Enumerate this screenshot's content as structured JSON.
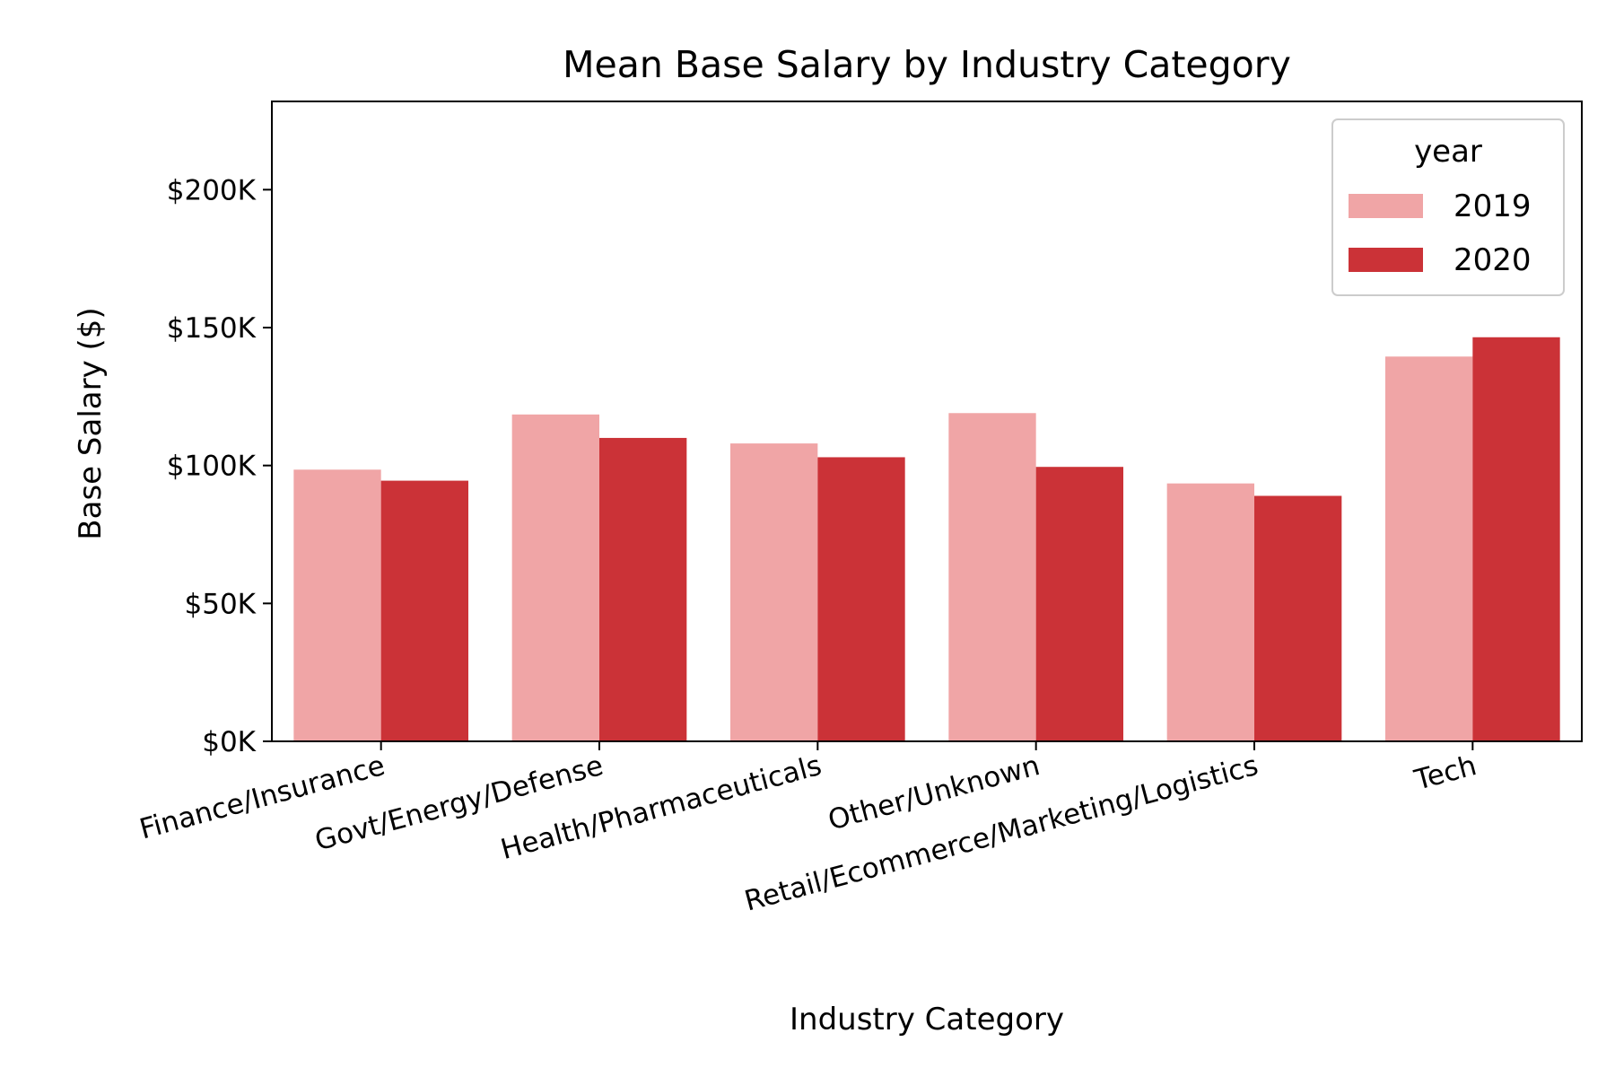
{
  "chart_data": {
    "type": "bar",
    "title": "Mean Base Salary by Industry Category",
    "xlabel": "Industry Category",
    "ylabel": "Base Salary ($)",
    "categories": [
      "Finance/Insurance",
      "Govt/Energy/Defense",
      "Health/Pharmaceuticals",
      "Other/Unknown",
      "Retail/Ecommerce/Marketing/Logistics",
      "Tech"
    ],
    "series": [
      {
        "name": "2019",
        "color": "#f0a5a6",
        "values": [
          98500,
          118500,
          108000,
          119000,
          93500,
          139500
        ]
      },
      {
        "name": "2020",
        "color": "#cb3237",
        "values": [
          94500,
          110000,
          103000,
          99500,
          89000,
          146500
        ]
      }
    ],
    "ylim": [
      0,
      232000
    ],
    "yticks": [
      0,
      50000,
      100000,
      150000,
      200000
    ],
    "ytick_labels": [
      "$0K",
      "$50K",
      "$100K",
      "$150K",
      "$200K"
    ],
    "legend": {
      "title": "year",
      "position": "top-right"
    },
    "grid": false
  }
}
